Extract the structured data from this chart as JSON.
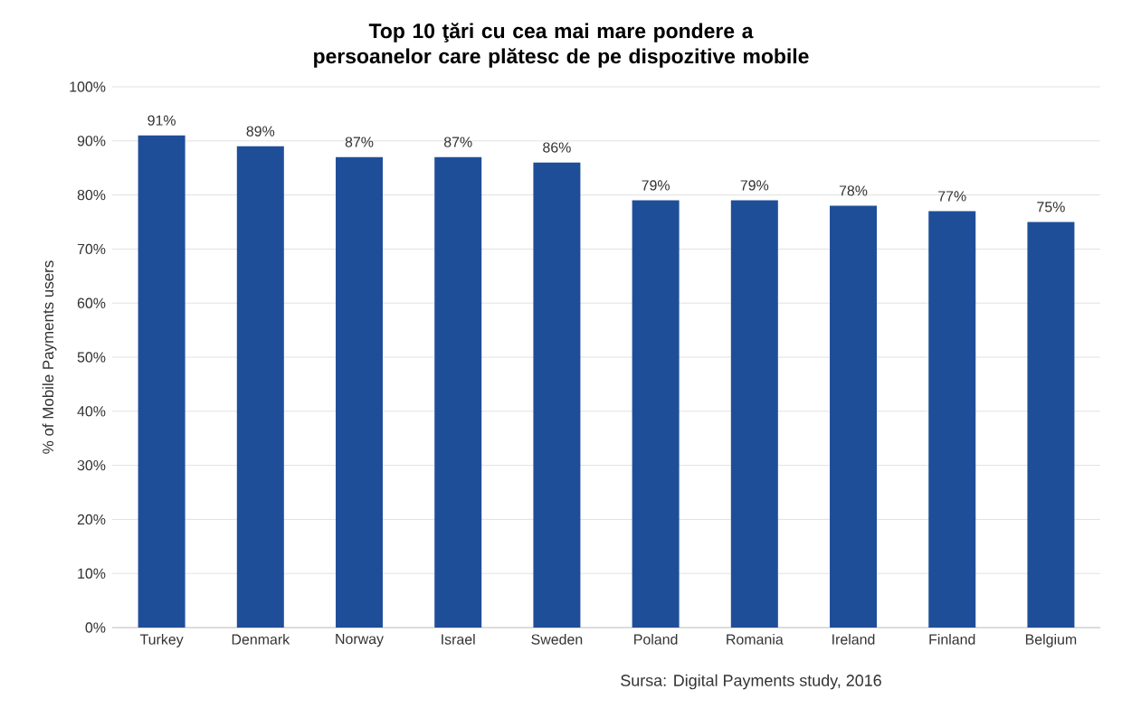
{
  "chart_data": {
    "type": "bar",
    "title": "Top 10 ţări cu cea mai mare pondere a persoanelor care plătesc de pe dispozitive mobile",
    "ylabel": "% of Mobile Payments users",
    "categories": [
      "Turkey",
      "Denmark",
      "Norway",
      "Israel",
      "Sweden",
      "Poland",
      "Romania",
      "Ireland",
      "Finland",
      "Belgium"
    ],
    "values": [
      91,
      89,
      87,
      87,
      86,
      79,
      79,
      78,
      77,
      75
    ],
    "value_labels": [
      "91%",
      "89%",
      "87%",
      "87%",
      "86%",
      "79%",
      "79%",
      "78%",
      "77%",
      "75%"
    ],
    "color": "#1f4e99",
    "ylim": [
      0,
      100
    ],
    "yticks": [
      {
        "value": 0,
        "label": "0%"
      },
      {
        "value": 10,
        "label": "10%"
      },
      {
        "value": 20,
        "label": "20%"
      },
      {
        "value": 30,
        "label": "30%"
      },
      {
        "value": 40,
        "label": "40%"
      },
      {
        "value": 50,
        "label": "50%"
      },
      {
        "value": 60,
        "label": "60%"
      },
      {
        "value": 70,
        "label": "70%"
      },
      {
        "value": 80,
        "label": "80%"
      },
      {
        "value": 90,
        "label": "90%"
      },
      {
        "value": 100,
        "label": "100%"
      }
    ],
    "grid": "y",
    "annotations": [
      "Sursa: Digital Payments study, 2016"
    ]
  }
}
